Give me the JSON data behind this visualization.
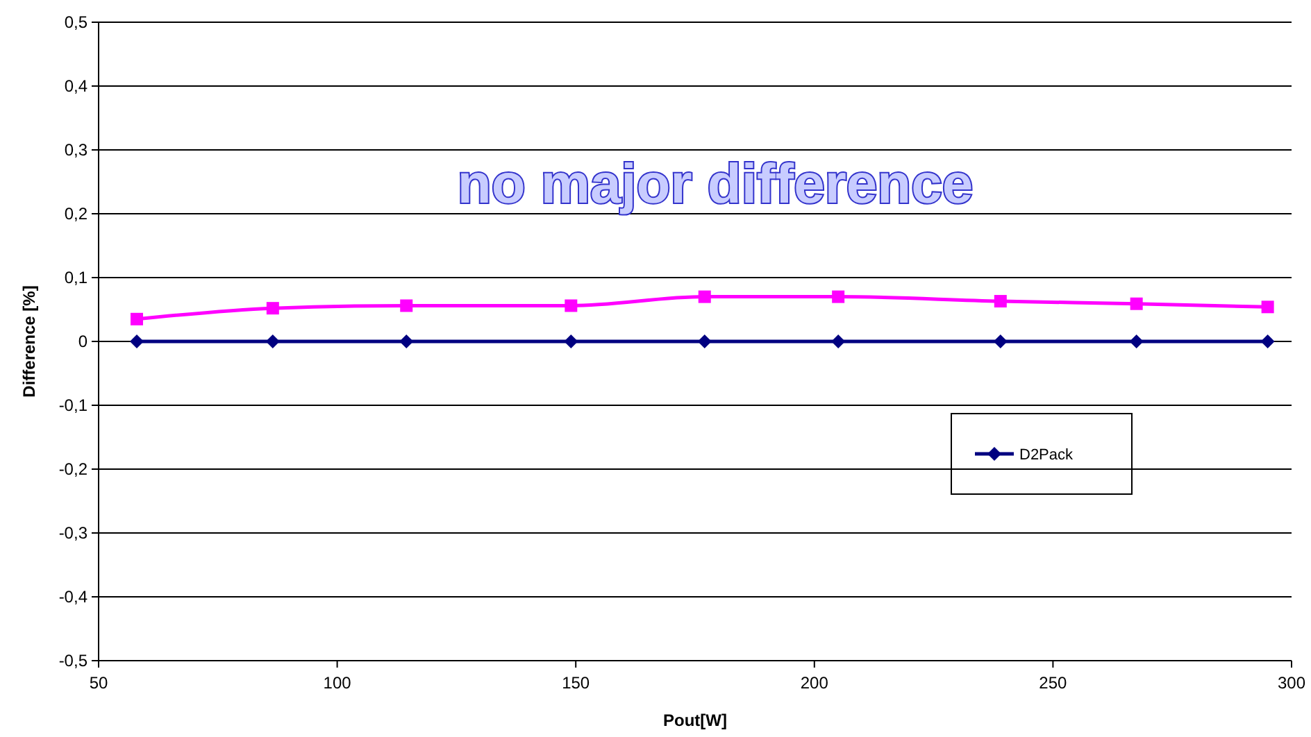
{
  "chart_data": {
    "type": "line",
    "xlabel": "Pout[W]",
    "ylabel": "Difference [%]",
    "annotations": [
      "no major difference"
    ],
    "xlim": [
      50,
      300
    ],
    "xticks": [
      50,
      100,
      150,
      200,
      250,
      300
    ],
    "ylim": [
      -0.5,
      0.5
    ],
    "yticks": [
      {
        "value": -0.5,
        "label": "-0,5"
      },
      {
        "value": -0.4,
        "label": "-0,4"
      },
      {
        "value": -0.3,
        "label": "-0,3"
      },
      {
        "value": -0.2,
        "label": "-0,2"
      },
      {
        "value": -0.1,
        "label": "-0,1"
      },
      0,
      {
        "value": 0.1,
        "label": "0,1"
      },
      {
        "value": 0.2,
        "label": "0,2"
      },
      {
        "value": 0.3,
        "label": "0,3"
      },
      {
        "value": 0.4,
        "label": "0,4"
      },
      {
        "value": 0.5,
        "label": "0,5"
      }
    ],
    "grid": "y",
    "legend": "right",
    "x": [
      58,
      86.5,
      114.5,
      149,
      177,
      205,
      239,
      267.5,
      295
    ],
    "series": [
      {
        "name": "D2Pack",
        "color": "#000080",
        "marker": "diamond",
        "values": [
          0,
          0,
          0,
          0,
          0,
          0,
          0,
          0,
          0
        ]
      },
      {
        "color": "#ff00ff",
        "marker": "square",
        "values": [
          0.035,
          0.052,
          0.056,
          0.056,
          0.07,
          0.07,
          0.063,
          0.059,
          0.054
        ]
      }
    ]
  }
}
